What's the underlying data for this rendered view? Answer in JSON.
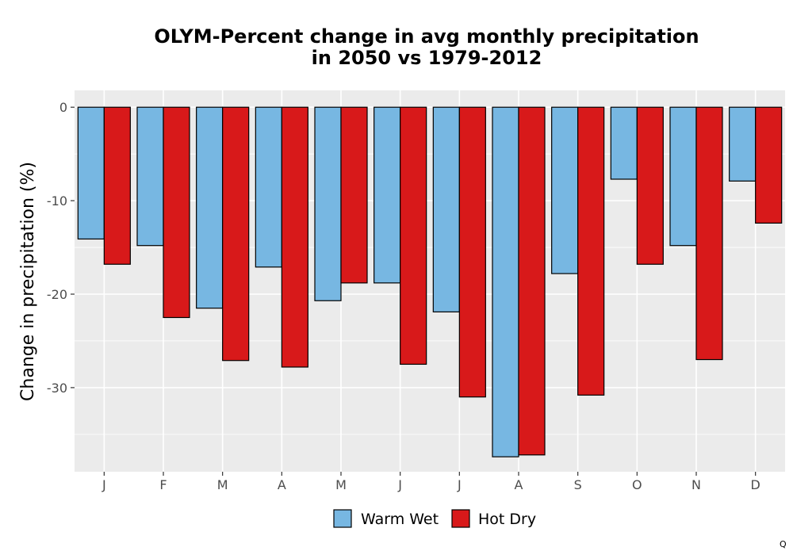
{
  "chart_data": {
    "type": "bar",
    "title_line1": "OLYM-Percent change in avg monthly precipitation",
    "title_line2": "in 2050 vs 1979-2012",
    "xlabel": "",
    "ylabel": "Change in precipitation (%)",
    "categories": [
      "J",
      "F",
      "M",
      "A",
      "M",
      "J",
      "J",
      "A",
      "S",
      "O",
      "N",
      "D"
    ],
    "series": [
      {
        "name": "Warm Wet",
        "color": "#77b7e2",
        "values": [
          -14.1,
          -14.8,
          -21.5,
          -17.1,
          -20.7,
          -18.8,
          -21.9,
          -37.4,
          -17.8,
          -7.7,
          -14.8,
          -7.9
        ]
      },
      {
        "name": "Hot Dry",
        "color": "#d8191a",
        "values": [
          -16.8,
          -22.5,
          -27.1,
          -27.8,
          -18.8,
          -27.5,
          -31.0,
          -37.2,
          -30.8,
          -16.8,
          -27.0,
          -12.4
        ]
      }
    ],
    "ylim": [
      -39.0,
      1.8
    ],
    "yticks": [
      0,
      -10,
      -20,
      -30
    ],
    "ytick_labels": [
      "0",
      "-10",
      "-20",
      "-30"
    ],
    "grid": true,
    "legend_position": "bottom",
    "corner_mark": "Q"
  }
}
